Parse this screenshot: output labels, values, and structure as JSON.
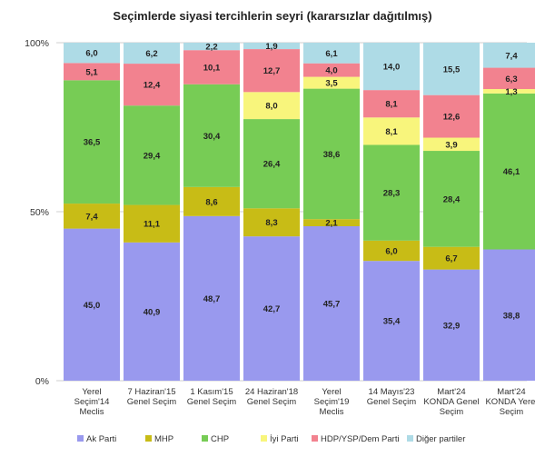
{
  "chart_data": {
    "type": "bar",
    "stacked": true,
    "title": "Seçimlerde siyasi tercihlerin seyri (kararsızlar dağıtılmış)",
    "xlabel": "",
    "ylabel": "",
    "ylim": [
      0,
      100
    ],
    "yticks": [
      "0%",
      "50%",
      "100%"
    ],
    "grid": true,
    "legend_position": "bottom",
    "categories": [
      [
        "Yerel",
        "Seçim'14",
        "Meclis"
      ],
      [
        "7 Haziran'15",
        "Genel Seçim"
      ],
      [
        "1 Kasım'15",
        "Genel Seçim"
      ],
      [
        "24 Haziran'18",
        "Genel Seçim"
      ],
      [
        "Yerel",
        "Seçim'19",
        "Meclis"
      ],
      [
        "14 Mayıs'23",
        "Genel Seçim"
      ],
      [
        "Mart'24",
        "KONDA Genel",
        "Seçim"
      ],
      [
        "Mart'24",
        "KONDA Yerel",
        "Seçim"
      ]
    ],
    "series": [
      {
        "name": "Ak Parti",
        "color": "#9999ee",
        "values": [
          45.0,
          40.9,
          48.7,
          42.7,
          45.7,
          35.4,
          32.9,
          38.8
        ],
        "labels": [
          "45,0",
          "40,9",
          "48,7",
          "42,7",
          "45,7",
          "35,4",
          "32,9",
          "38,8"
        ]
      },
      {
        "name": "MHP",
        "color": "#c8bc16",
        "values": [
          7.4,
          11.1,
          8.6,
          8.3,
          2.1,
          6.0,
          6.7,
          0
        ],
        "labels": [
          "7,4",
          "11,1",
          "8,6",
          "8,3",
          "2,1",
          "6,0",
          "6,7",
          ""
        ]
      },
      {
        "name": "CHP",
        "color": "#77cc55",
        "values": [
          36.5,
          29.4,
          30.4,
          26.4,
          38.6,
          28.3,
          28.4,
          46.1
        ],
        "labels": [
          "36,5",
          "29,4",
          "30,4",
          "26,4",
          "38,6",
          "28,3",
          "28,4",
          "46,1"
        ]
      },
      {
        "name": "İyi Parti",
        "color": "#f8f57c",
        "values": [
          0,
          0,
          0,
          8.0,
          3.5,
          8.1,
          3.9,
          1.3
        ],
        "labels": [
          "",
          "",
          "",
          "8,0",
          "3,5",
          "8,1",
          "3,9",
          "1,3"
        ]
      },
      {
        "name": "HDP/YSP/Dem Parti",
        "color": "#f2828f",
        "values": [
          5.1,
          12.4,
          10.1,
          12.7,
          4.0,
          8.1,
          12.6,
          6.3
        ],
        "labels": [
          "5,1",
          "12,4",
          "10,1",
          "12,7",
          "4,0",
          "8,1",
          "12,6",
          "6,3"
        ]
      },
      {
        "name": "Diğer partiler",
        "color": "#aedbe6",
        "values": [
          6.0,
          6.2,
          2.2,
          1.9,
          6.1,
          14.0,
          15.5,
          7.4
        ],
        "labels": [
          "6,0",
          "6,2",
          "2,2",
          "1,9",
          "6,1",
          "14,0",
          "15,5",
          "7,4"
        ]
      }
    ]
  }
}
